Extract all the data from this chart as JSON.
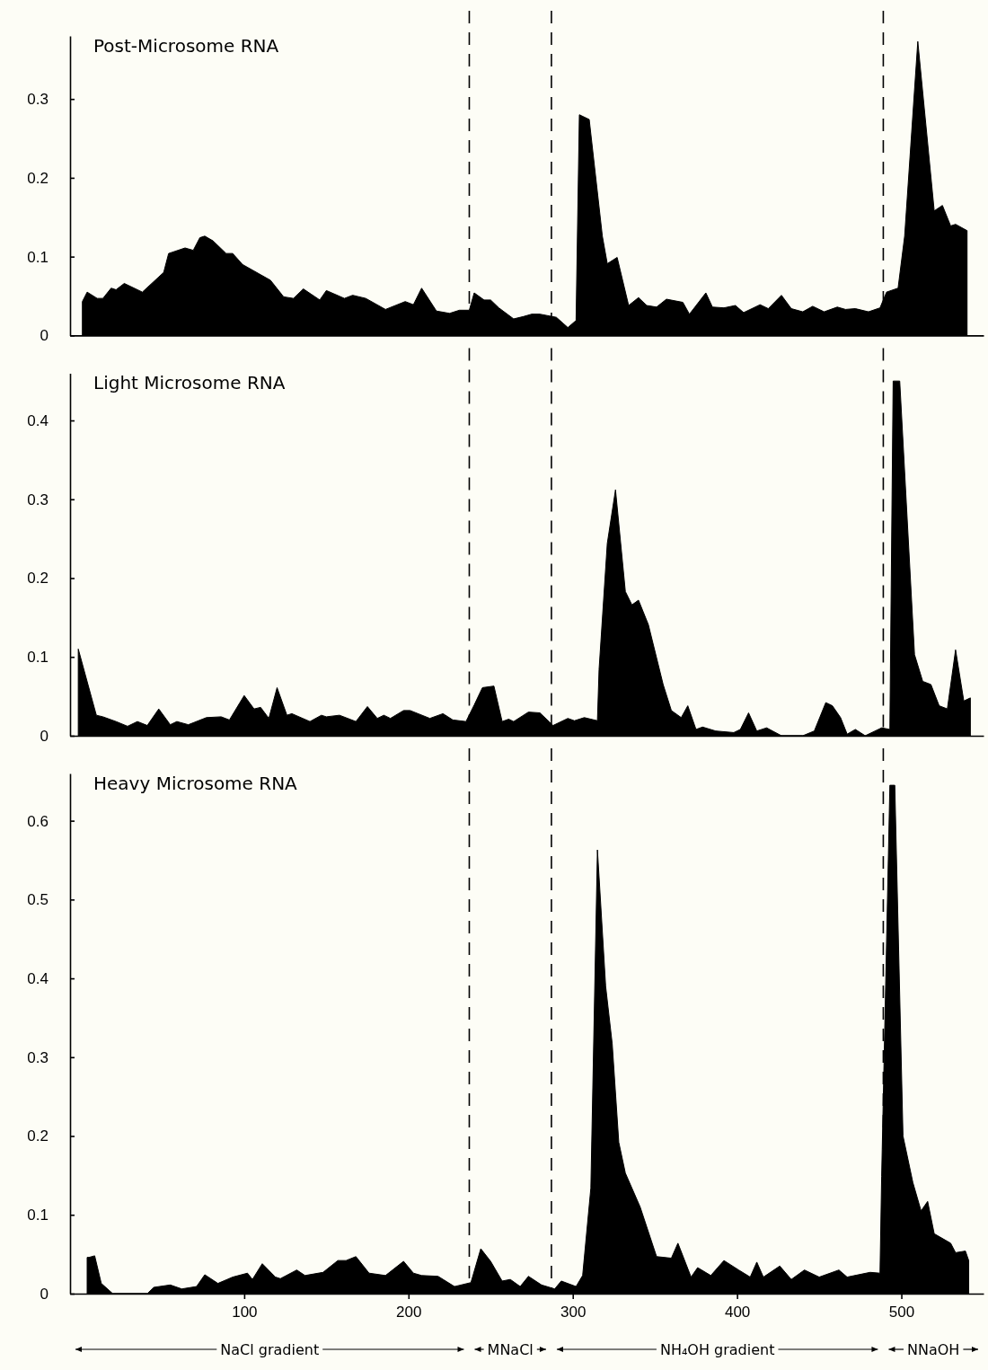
{
  "chart_data": [
    {
      "type": "area",
      "title": "Post-Microsome RNA",
      "xlim": [
        -6,
        550
      ],
      "ylim": [
        0,
        0.38
      ],
      "yticks": [
        0,
        0.1,
        0.2,
        0.3
      ],
      "tick_labels": "y",
      "x": [
        1.5,
        4.4,
        10.5,
        14,
        19,
        22,
        27,
        38,
        51,
        54,
        64,
        69,
        73,
        76,
        81,
        89,
        93,
        99,
        116,
        124,
        130,
        136,
        146,
        150,
        161,
        166,
        174,
        186,
        198,
        203,
        208,
        217,
        225,
        231,
        237,
        240,
        246,
        250,
        255,
        264,
        270,
        275,
        280,
        290,
        297,
        302,
        304,
        310,
        318,
        321,
        327,
        334,
        340,
        345,
        351,
        357,
        367,
        371,
        381,
        385,
        392,
        399,
        404,
        414,
        419,
        427,
        433,
        440,
        446,
        453,
        461,
        466,
        472,
        480,
        487,
        491,
        498,
        502,
        510,
        520,
        525,
        530,
        533,
        540
      ],
      "series": [
        {
          "color": "#000000",
          "values": [
            0.043,
            0.055,
            0.047,
            0.047,
            0.06,
            0.058,
            0.066,
            0.055,
            0.08,
            0.104,
            0.111,
            0.108,
            0.124,
            0.126,
            0.12,
            0.104,
            0.104,
            0.09,
            0.07,
            0.049,
            0.047,
            0.059,
            0.045,
            0.057,
            0.047,
            0.051,
            0.047,
            0.033,
            0.043,
            0.039,
            0.06,
            0.031,
            0.028,
            0.032,
            0.032,
            0.054,
            0.045,
            0.045,
            0.035,
            0.021,
            0.024,
            0.027,
            0.027,
            0.023,
            0.01,
            0.019,
            0.28,
            0.274,
            0.126,
            0.091,
            0.099,
            0.038,
            0.048,
            0.038,
            0.036,
            0.046,
            0.042,
            0.027,
            0.054,
            0.036,
            0.035,
            0.038,
            0.029,
            0.039,
            0.034,
            0.051,
            0.034,
            0.03,
            0.037,
            0.03,
            0.036,
            0.033,
            0.034,
            0.03,
            0.035,
            0.055,
            0.06,
            0.126,
            0.373,
            0.158,
            0.165,
            0.139,
            0.141,
            0.133
          ]
        }
      ],
      "ref_lines": [
        {
          "axis": "x",
          "value": 237,
          "line_style": "dashed"
        },
        {
          "axis": "x",
          "value": 287,
          "line_style": "dashed"
        },
        {
          "axis": "x",
          "value": 489,
          "line_style": "dashed"
        }
      ]
    },
    {
      "type": "area",
      "title": "Light Microsome RNA",
      "xlim": [
        -6,
        550
      ],
      "ylim": [
        0,
        0.46
      ],
      "yticks": [
        0,
        0.1,
        0.2,
        0.3,
        0.4
      ],
      "tick_labels": "y",
      "x": [
        -1,
        10,
        14,
        22,
        29,
        35,
        41,
        48,
        55,
        59,
        66,
        77,
        86,
        91,
        100,
        106,
        110,
        115,
        120,
        126,
        129,
        140,
        147,
        150,
        158,
        168,
        175,
        181,
        185,
        189,
        197,
        201,
        213,
        221,
        227,
        235,
        240,
        245,
        252,
        257,
        261,
        264,
        273,
        280,
        288,
        297,
        301,
        307,
        315,
        316,
        321,
        326,
        332,
        336,
        340,
        346,
        355,
        360,
        366,
        370,
        375,
        379,
        387,
        398,
        402,
        407,
        412,
        418,
        427,
        440,
        447,
        454,
        458,
        463,
        467,
        472,
        478,
        488,
        493,
        495,
        499,
        508,
        513,
        518,
        523,
        528,
        533,
        538,
        542
      ],
      "series": [
        {
          "color": "#000000",
          "values": [
            0.11,
            0.026,
            0.024,
            0.018,
            0.012,
            0.018,
            0.013,
            0.034,
            0.014,
            0.018,
            0.014,
            0.023,
            0.024,
            0.02,
            0.051,
            0.034,
            0.036,
            0.022,
            0.061,
            0.026,
            0.028,
            0.018,
            0.026,
            0.024,
            0.026,
            0.018,
            0.037,
            0.022,
            0.026,
            0.022,
            0.032,
            0.032,
            0.022,
            0.028,
            0.02,
            0.018,
            0.039,
            0.061,
            0.063,
            0.018,
            0.021,
            0.018,
            0.03,
            0.029,
            0.013,
            0.022,
            0.019,
            0.023,
            0.019,
            0.084,
            0.244,
            0.312,
            0.183,
            0.166,
            0.172,
            0.141,
            0.065,
            0.032,
            0.023,
            0.038,
            0.008,
            0.011,
            0.006,
            0.004,
            0.008,
            0.029,
            0.006,
            0.01,
            0,
            0,
            0.006,
            0.042,
            0.038,
            0.023,
            0.002,
            0.008,
            0,
            0.01,
            0.008,
            0.45,
            0.45,
            0.103,
            0.069,
            0.065,
            0.038,
            0.034,
            0.109,
            0.044,
            0.048
          ]
        }
      ],
      "ref_lines": [
        {
          "axis": "x",
          "value": 237,
          "line_style": "dashed"
        },
        {
          "axis": "x",
          "value": 287,
          "line_style": "dashed"
        },
        {
          "axis": "x",
          "value": 489,
          "line_style": "dashed"
        }
      ]
    },
    {
      "type": "area",
      "title": "Heavy Microsome RNA",
      "xlim": [
        -6,
        550
      ],
      "xticks": [
        100,
        200,
        300,
        400,
        500
      ],
      "ylim": [
        0,
        0.66
      ],
      "yticks": [
        0,
        0.1,
        0.2,
        0.3,
        0.4,
        0.5,
        0.6
      ],
      "x": [
        4.4,
        5.5,
        9,
        13,
        20,
        41,
        45,
        55,
        62,
        71,
        76,
        84,
        93,
        102,
        105,
        111,
        119,
        122,
        132,
        137,
        148,
        157,
        162,
        168,
        176,
        186,
        197,
        203,
        208,
        218,
        228,
        238,
        244,
        250,
        257,
        262,
        268,
        273,
        281,
        289,
        293,
        302,
        306,
        311,
        315,
        320,
        324,
        328,
        332,
        341,
        351,
        360,
        364,
        372,
        376,
        384,
        392,
        401,
        408,
        412,
        416,
        426,
        433,
        441,
        450,
        462,
        467,
        481,
        487,
        488,
        493,
        496,
        501,
        507,
        512,
        516,
        520,
        530,
        533,
        539,
        541
      ],
      "series": [
        {
          "color": "#000000",
          "values": [
            0.046,
            0.046,
            0.048,
            0.013,
            0,
            0,
            0.008,
            0.011,
            0.006,
            0.009,
            0.024,
            0.013,
            0.021,
            0.026,
            0.018,
            0.038,
            0.021,
            0.019,
            0.03,
            0.023,
            0.027,
            0.042,
            0.042,
            0.047,
            0.026,
            0.023,
            0.041,
            0.026,
            0.023,
            0.022,
            0.009,
            0.014,
            0.057,
            0.041,
            0.016,
            0.018,
            0.009,
            0.022,
            0.011,
            0.006,
            0.016,
            0.009,
            0.023,
            0.134,
            0.563,
            0.39,
            0.317,
            0.192,
            0.153,
            0.11,
            0.047,
            0.045,
            0.064,
            0.021,
            0.033,
            0.023,
            0.042,
            0.03,
            0.021,
            0.04,
            0.021,
            0.035,
            0.018,
            0.03,
            0.021,
            0.03,
            0.021,
            0.027,
            0.026,
            0.149,
            0.645,
            0.645,
            0.2,
            0.141,
            0.105,
            0.117,
            0.076,
            0.064,
            0.052,
            0.054,
            0.042
          ]
        }
      ],
      "ref_lines": [
        {
          "axis": "x",
          "value": 237,
          "line_style": "dashed"
        },
        {
          "axis": "x",
          "value": 287,
          "line_style": "dashed"
        },
        {
          "axis": "x",
          "value": 489,
          "line_style": "dashed"
        }
      ],
      "annotations": [
        "NaCl gradient",
        "MNaCl",
        "NH₄OH gradient",
        "NNaOH"
      ]
    }
  ]
}
